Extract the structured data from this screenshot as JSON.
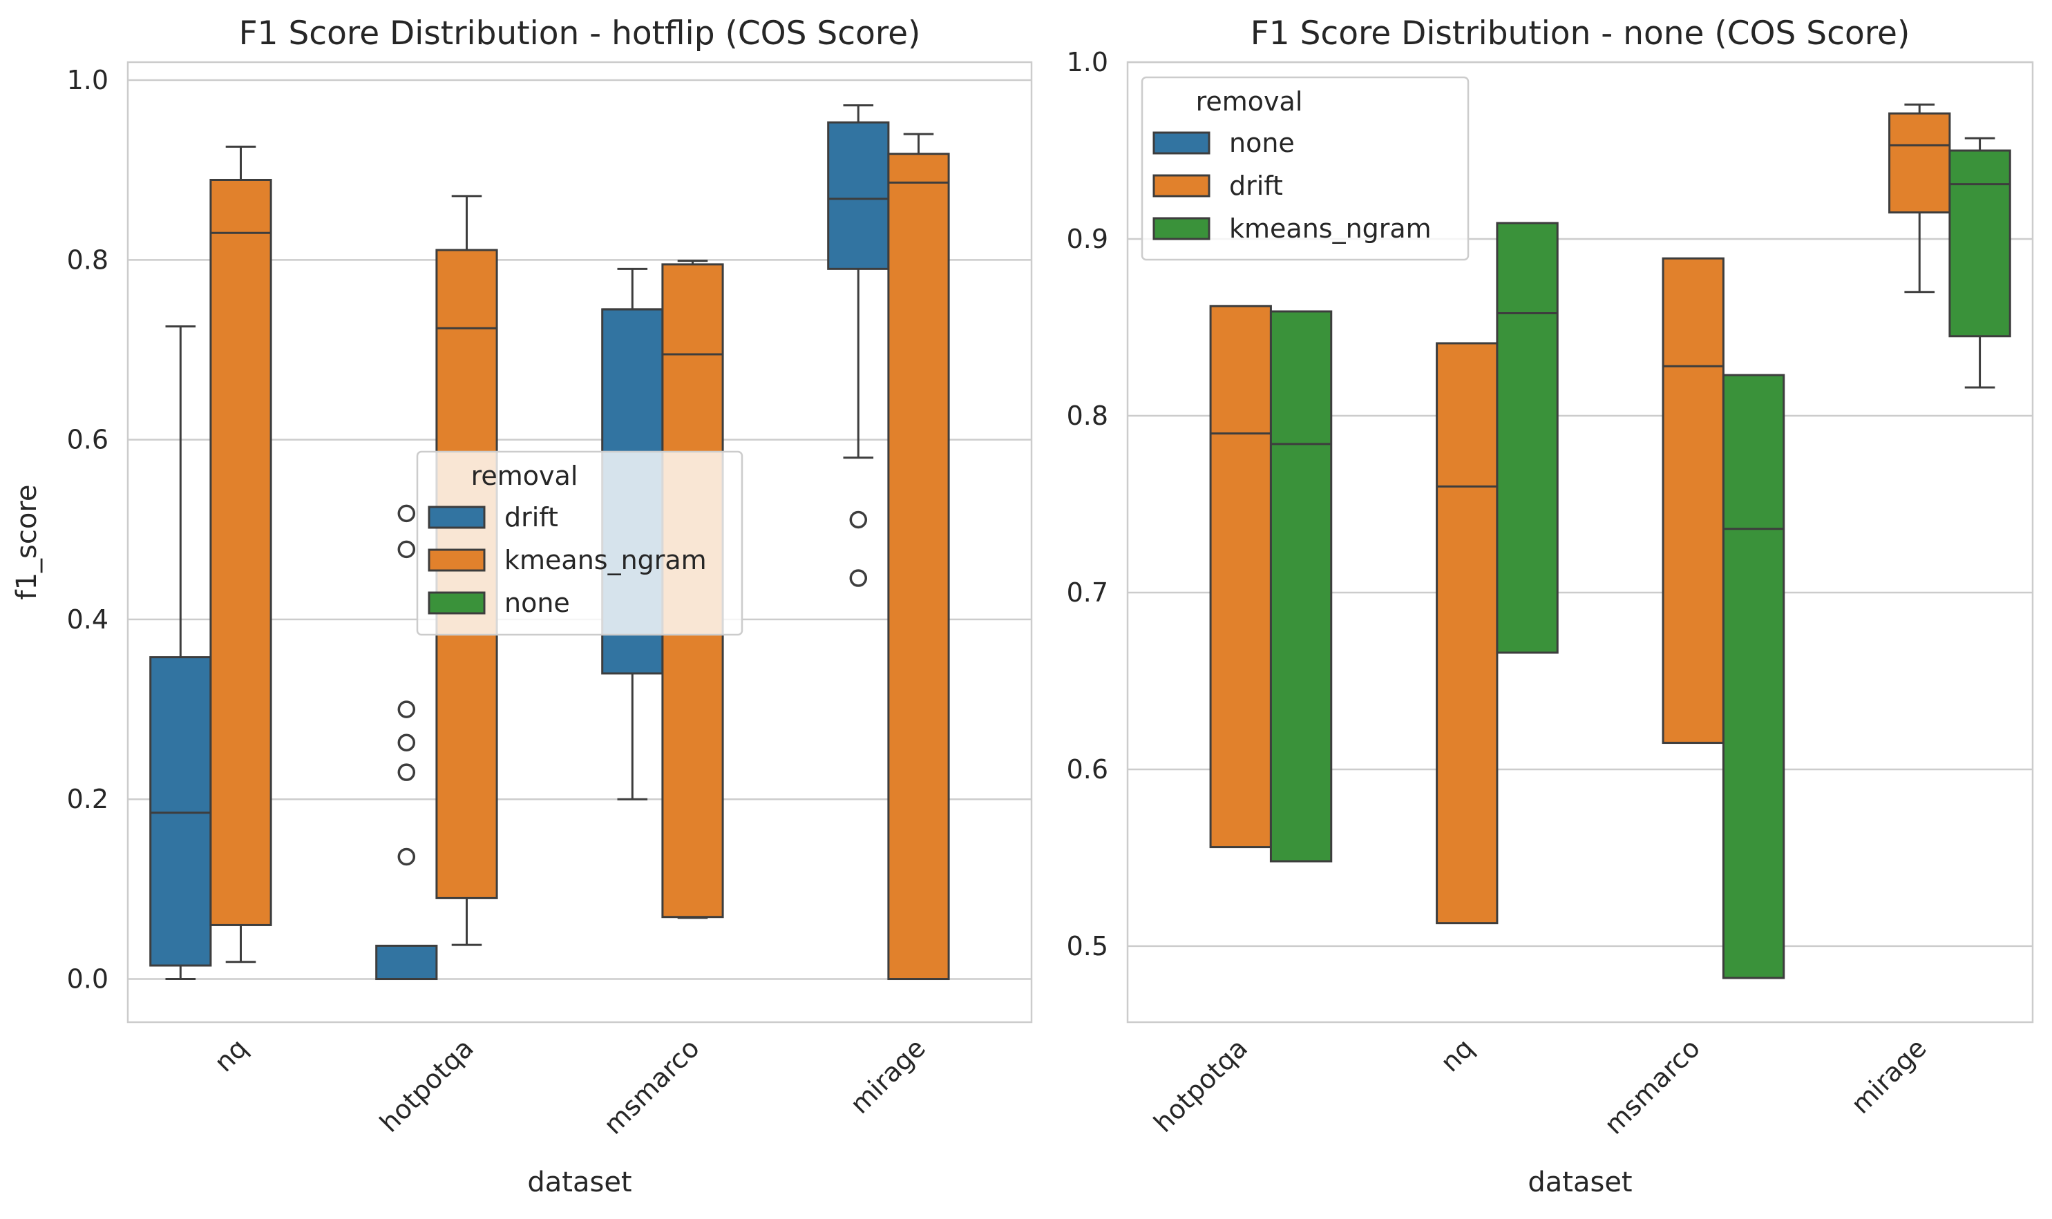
{
  "chart_data": [
    {
      "type": "box",
      "title": "F1 Score Distribution - hotflip (COS Score)",
      "xlabel": "dataset",
      "ylabel": "f1_score",
      "ylim": [
        -0.048,
        1.02
      ],
      "yticks": [
        "0.0",
        "0.2",
        "0.4",
        "0.6",
        "0.8",
        "1.0"
      ],
      "ytick_values": [
        0.0,
        0.2,
        0.4,
        0.6,
        0.8,
        1.0
      ],
      "categories": [
        "nq",
        "hotpotqa",
        "msmarco",
        "mirage"
      ],
      "grid": "horizontal",
      "legend": {
        "title": "removal",
        "placement": "center",
        "entries": [
          {
            "label": "drift",
            "color": "#3274a1"
          },
          {
            "label": "kmeans_ngram",
            "color": "#e1812c"
          },
          {
            "label": "none",
            "color": "#3a923a"
          }
        ]
      },
      "series": [
        {
          "name": "drift",
          "color": "#3274a1",
          "boxes": [
            {
              "category": "nq",
              "whislo": 0.0,
              "q1": 0.015,
              "med": 0.185,
              "q3": 0.358,
              "whishi": 0.726,
              "fliers": []
            },
            {
              "category": "hotpotqa",
              "whislo": 0.0,
              "q1": 0.0,
              "med": 0.0,
              "q3": 0.037,
              "whishi": 0.037,
              "fliers": [
                0.518,
                0.478,
                0.3,
                0.263,
                0.23,
                0.136
              ]
            },
            {
              "category": "msmarco",
              "whislo": 0.2,
              "q1": 0.34,
              "med": 0.745,
              "q3": 0.745,
              "whishi": 0.79,
              "fliers": []
            },
            {
              "category": "mirage",
              "whislo": 0.58,
              "q1": 0.79,
              "med": 0.868,
              "q3": 0.953,
              "whishi": 0.972,
              "fliers": [
                0.511,
                0.446
              ]
            }
          ]
        },
        {
          "name": "kmeans_ngram",
          "color": "#e1812c",
          "boxes": [
            {
              "category": "nq",
              "whislo": 0.019,
              "q1": 0.06,
              "med": 0.83,
              "q3": 0.889,
              "whishi": 0.926,
              "fliers": []
            },
            {
              "category": "hotpotqa",
              "whislo": 0.038,
              "q1": 0.09,
              "med": 0.724,
              "q3": 0.811,
              "whishi": 0.871,
              "fliers": []
            },
            {
              "category": "msmarco",
              "whislo": 0.068,
              "q1": 0.069,
              "med": 0.695,
              "q3": 0.795,
              "whishi": 0.799,
              "fliers": []
            },
            {
              "category": "mirage",
              "whislo": 0.0,
              "q1": 0.0,
              "med": 0.886,
              "q3": 0.918,
              "whishi": 0.94,
              "fliers": []
            }
          ]
        }
      ]
    },
    {
      "type": "box",
      "title": "F1 Score Distribution - none (COS Score)",
      "xlabel": "dataset",
      "ylabel": "",
      "ylim": [
        0.457,
        1.0
      ],
      "yticks": [
        "0.5",
        "0.6",
        "0.7",
        "0.8",
        "0.9",
        "1.0"
      ],
      "ytick_values": [
        0.5,
        0.6,
        0.7,
        0.8,
        0.9,
        1.0
      ],
      "categories": [
        "hotpotqa",
        "nq",
        "msmarco",
        "mirage"
      ],
      "grid": "horizontal",
      "legend": {
        "title": "removal",
        "placement": "upper left",
        "entries": [
          {
            "label": "none",
            "color": "#3274a1"
          },
          {
            "label": "drift",
            "color": "#e1812c"
          },
          {
            "label": "kmeans_ngram",
            "color": "#3a923a"
          }
        ]
      },
      "series": [
        {
          "name": "drift",
          "color": "#e1812c",
          "boxes": [
            {
              "category": "hotpotqa",
              "whislo": 0.556,
              "q1": 0.556,
              "med": 0.79,
              "q3": 0.862,
              "whishi": 0.862,
              "fliers": []
            },
            {
              "category": "nq",
              "whislo": 0.513,
              "q1": 0.513,
              "med": 0.76,
              "q3": 0.841,
              "whishi": 0.841,
              "fliers": []
            },
            {
              "category": "msmarco",
              "whislo": 0.615,
              "q1": 0.615,
              "med": 0.828,
              "q3": 0.889,
              "whishi": 0.889,
              "fliers": []
            },
            {
              "category": "mirage",
              "whislo": 0.87,
              "q1": 0.915,
              "med": 0.953,
              "q3": 0.971,
              "whishi": 0.976,
              "fliers": []
            }
          ]
        },
        {
          "name": "kmeans_ngram",
          "color": "#3a923a",
          "boxes": [
            {
              "category": "hotpotqa",
              "whislo": 0.548,
              "q1": 0.548,
              "med": 0.784,
              "q3": 0.859,
              "whishi": 0.859,
              "fliers": []
            },
            {
              "category": "nq",
              "whislo": 0.666,
              "q1": 0.666,
              "med": 0.858,
              "q3": 0.909,
              "whishi": 0.909,
              "fliers": []
            },
            {
              "category": "msmarco",
              "whislo": 0.482,
              "q1": 0.482,
              "med": 0.736,
              "q3": 0.823,
              "whishi": 0.823,
              "fliers": []
            },
            {
              "category": "mirage",
              "whislo": 0.816,
              "q1": 0.845,
              "med": 0.931,
              "q3": 0.95,
              "whishi": 0.957,
              "fliers": []
            }
          ]
        }
      ]
    }
  ]
}
